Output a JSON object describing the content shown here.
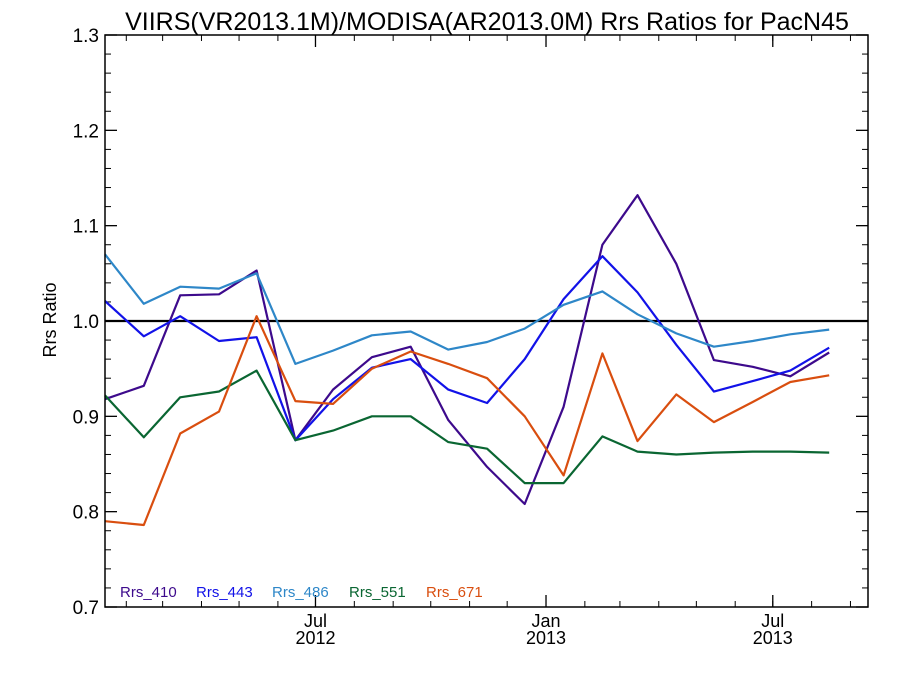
{
  "chart_data": {
    "type": "line",
    "title": "VIIRS(VR2013.1M)/MODISA(AR2013.0M)  Rrs Ratios for PacN45",
    "xlabel": "",
    "ylabel": "Rrs Ratio",
    "x_range": [
      "2012-01-15",
      "2013-09-15"
    ],
    "ylim": [
      0.7,
      1.3
    ],
    "y_ticks": [
      "0.7",
      "0.8",
      "0.9",
      "1.0",
      "1.1",
      "1.2",
      "1.3"
    ],
    "x_ticks": [
      {
        "date": "2012-07-01",
        "label_line1": "Jul",
        "label_line2": "2012"
      },
      {
        "date": "2013-01-01",
        "label_line1": "Jan",
        "label_line2": "2013"
      },
      {
        "date": "2013-07-01",
        "label_line1": "Jul",
        "label_line2": "2013"
      }
    ],
    "reference_line": {
      "y": 1.0,
      "color": "#000000"
    },
    "grid": false,
    "legend_position": "bottom-left",
    "x": [
      "2012-01-15",
      "2012-02-15",
      "2012-03-15",
      "2012-04-15",
      "2012-05-15",
      "2012-06-15",
      "2012-07-15",
      "2012-08-15",
      "2012-09-15",
      "2012-10-15",
      "2012-11-15",
      "2012-12-15",
      "2013-01-15",
      "2013-02-15",
      "2013-03-15",
      "2013-04-15",
      "2013-05-15",
      "2013-06-15",
      "2013-07-15",
      "2013-08-15"
    ],
    "series": [
      {
        "name": "Rrs_410",
        "color": "#3d0a8c",
        "values": [
          0.918,
          0.932,
          1.027,
          1.028,
          1.053,
          0.875,
          0.928,
          0.962,
          0.973,
          0.896,
          0.847,
          0.808,
          0.91,
          1.08,
          1.132,
          1.06,
          0.959,
          0.952,
          0.942,
          0.967
        ]
      },
      {
        "name": "Rrs_443",
        "color": "#1212e8",
        "values": [
          1.021,
          0.984,
          1.005,
          0.979,
          0.983,
          0.875,
          0.918,
          0.951,
          0.96,
          0.928,
          0.914,
          0.96,
          1.023,
          1.068,
          1.03,
          0.975,
          0.926,
          0.937,
          0.948,
          0.972
        ]
      },
      {
        "name": "Rrs_486",
        "color": "#2e87c8",
        "values": [
          1.07,
          1.018,
          1.036,
          1.034,
          1.05,
          0.955,
          0.969,
          0.985,
          0.989,
          0.97,
          0.978,
          0.992,
          1.017,
          1.031,
          1.007,
          0.987,
          0.973,
          0.979,
          0.986,
          0.991
        ]
      },
      {
        "name": "Rrs_551",
        "color": "#0a6632",
        "values": [
          0.922,
          0.878,
          0.92,
          0.926,
          0.948,
          0.875,
          0.885,
          0.9,
          0.9,
          0.873,
          0.866,
          0.83,
          0.83,
          0.879,
          0.863,
          0.86,
          0.862,
          0.863,
          0.863,
          0.862
        ]
      },
      {
        "name": "Rrs_671",
        "color": "#d94e0f",
        "values": [
          0.79,
          0.786,
          0.882,
          0.905,
          1.005,
          0.916,
          0.913,
          0.95,
          0.968,
          0.955,
          0.94,
          0.9,
          0.838,
          0.966,
          0.874,
          0.923,
          0.894,
          0.915,
          0.936,
          0.943
        ]
      }
    ]
  }
}
